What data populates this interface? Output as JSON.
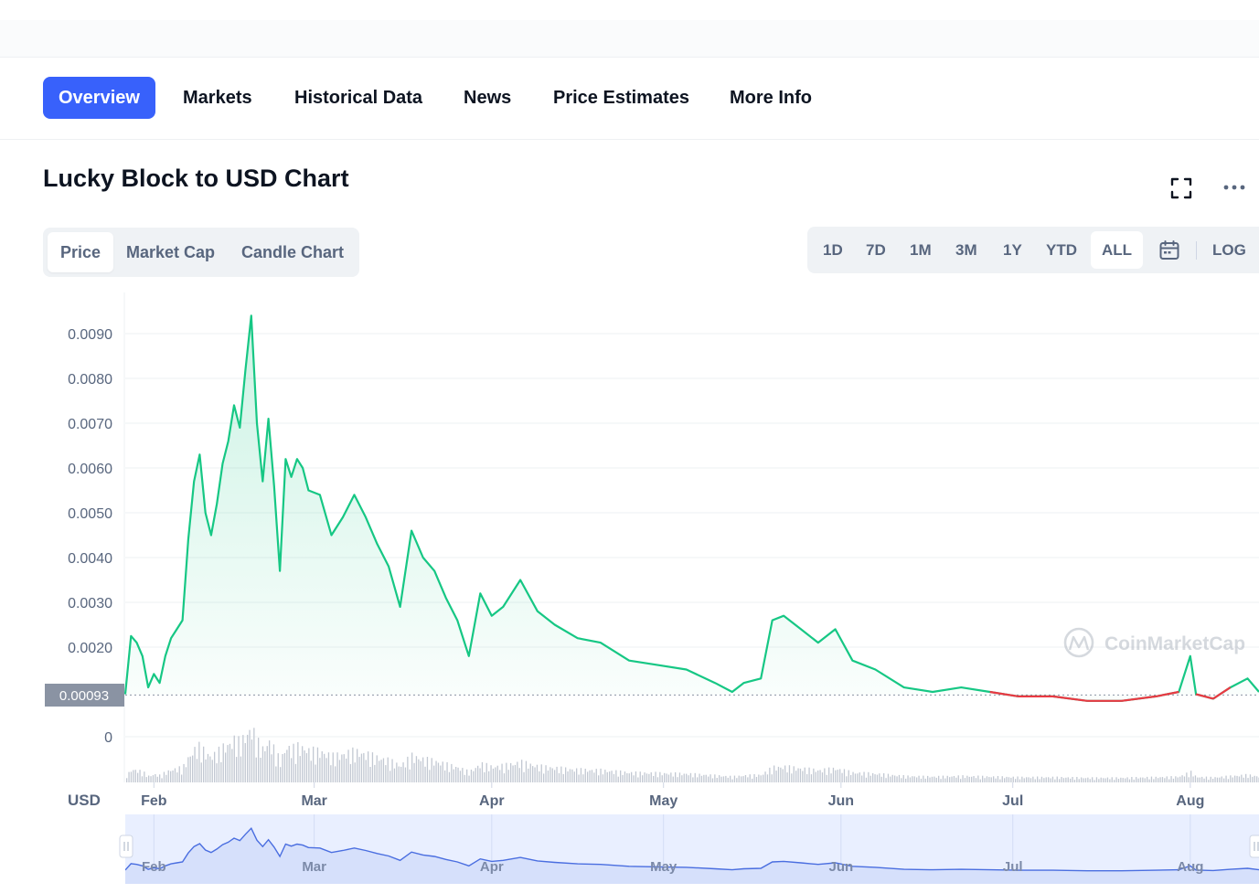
{
  "tabs": [
    {
      "label": "Overview",
      "active": true
    },
    {
      "label": "Markets"
    },
    {
      "label": "Historical Data"
    },
    {
      "label": "News"
    },
    {
      "label": "Price Estimates"
    },
    {
      "label": "More Info"
    }
  ],
  "chart_title": "Lucky Block to USD Chart",
  "icons": {
    "fullscreen": "fullscreen-icon",
    "more": "more-dots-icon",
    "calendar": "calendar-icon"
  },
  "view_toggle": [
    {
      "label": "Price",
      "active": true
    },
    {
      "label": "Market Cap"
    },
    {
      "label": "Candle Chart"
    }
  ],
  "ranges": [
    {
      "label": "1D"
    },
    {
      "label": "7D"
    },
    {
      "label": "1M"
    },
    {
      "label": "3M"
    },
    {
      "label": "1Y"
    },
    {
      "label": "YTD"
    },
    {
      "label": "ALL",
      "active": true
    }
  ],
  "log_label": "LOG",
  "colors": {
    "accent": "#3861fb",
    "up": "#16c784",
    "down": "#ea3943",
    "nav_line": "#4a6ee0",
    "nav_fill": "#e9efff"
  },
  "chart_data": {
    "type": "line",
    "currency_label": "USD",
    "watermark": "CoinMarketCap",
    "x_ticks": [
      "Feb",
      "Mar",
      "Apr",
      "May",
      "Jun",
      "Jul",
      "Aug"
    ],
    "y_ticks": [
      0,
      0.002,
      0.003,
      0.004,
      0.005,
      0.006,
      0.007,
      0.008,
      0.009
    ],
    "y_tick_labels": [
      "0",
      "0.0020",
      "0.0030",
      "0.0040",
      "0.0050",
      "0.0060",
      "0.0070",
      "0.0080",
      "0.0090"
    ],
    "baseline_value": 0.00093,
    "baseline_label": "0.00093",
    "ylim": [
      0,
      0.0094
    ],
    "grid": true,
    "series": [
      {
        "x": [
          "2022-01-27",
          "2022-01-28",
          "2022-01-29",
          "2022-01-30",
          "2022-01-31",
          "2022-02-01",
          "2022-02-02",
          "2022-02-03",
          "2022-02-04",
          "2022-02-05",
          "2022-02-06",
          "2022-02-07",
          "2022-02-08",
          "2022-02-09",
          "2022-02-10",
          "2022-02-11",
          "2022-02-12",
          "2022-02-13",
          "2022-02-14",
          "2022-02-15",
          "2022-02-16",
          "2022-02-17",
          "2022-02-18",
          "2022-02-19",
          "2022-02-20",
          "2022-02-21",
          "2022-02-22",
          "2022-02-23",
          "2022-02-24",
          "2022-02-25",
          "2022-02-26",
          "2022-02-27",
          "2022-02-28",
          "2022-03-02",
          "2022-03-04",
          "2022-03-06",
          "2022-03-08",
          "2022-03-10",
          "2022-03-12",
          "2022-03-14",
          "2022-03-16",
          "2022-03-18",
          "2022-03-20",
          "2022-03-22",
          "2022-03-24",
          "2022-03-26",
          "2022-03-28",
          "2022-03-30",
          "2022-04-01",
          "2022-04-03",
          "2022-04-06",
          "2022-04-09",
          "2022-04-12",
          "2022-04-16",
          "2022-04-20",
          "2022-04-25",
          "2022-04-30",
          "2022-05-05",
          "2022-05-10",
          "2022-05-13",
          "2022-05-15",
          "2022-05-18",
          "2022-05-20",
          "2022-05-22",
          "2022-05-25",
          "2022-05-28",
          "2022-05-31",
          "2022-06-03",
          "2022-06-07",
          "2022-06-12",
          "2022-06-17",
          "2022-06-22",
          "2022-06-27",
          "2022-07-02",
          "2022-07-08",
          "2022-07-14",
          "2022-07-20",
          "2022-07-26",
          "2022-07-30",
          "2022-08-01",
          "2022-08-02",
          "2022-08-05",
          "2022-08-08",
          "2022-08-11",
          "2022-08-13"
        ],
        "values": [
          0.00095,
          0.00225,
          0.0021,
          0.0018,
          0.0011,
          0.0014,
          0.0012,
          0.0018,
          0.0022,
          0.0024,
          0.0026,
          0.0044,
          0.0057,
          0.0063,
          0.005,
          0.0045,
          0.0052,
          0.0061,
          0.0066,
          0.0074,
          0.0069,
          0.0082,
          0.0094,
          0.007,
          0.0057,
          0.0071,
          0.0056,
          0.0037,
          0.0062,
          0.0058,
          0.0062,
          0.006,
          0.0055,
          0.0054,
          0.0045,
          0.0049,
          0.0054,
          0.0049,
          0.0043,
          0.0038,
          0.0029,
          0.0046,
          0.004,
          0.0037,
          0.0031,
          0.0026,
          0.0018,
          0.0032,
          0.0027,
          0.0029,
          0.0035,
          0.0028,
          0.0025,
          0.0022,
          0.0021,
          0.0017,
          0.0016,
          0.0015,
          0.0012,
          0.001,
          0.0012,
          0.0013,
          0.0026,
          0.0027,
          0.0024,
          0.0021,
          0.0024,
          0.0017,
          0.0015,
          0.0011,
          0.001,
          0.0011,
          0.001,
          0.0009,
          0.0009,
          0.0008,
          0.0008,
          0.0009,
          0.001,
          0.0018,
          0.00095,
          0.00085,
          0.0011,
          0.0013,
          0.001
        ]
      }
    ]
  }
}
